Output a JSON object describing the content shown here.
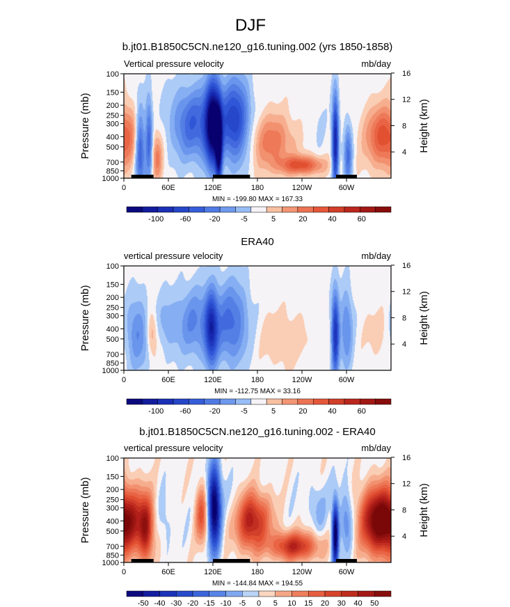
{
  "figure_title": "DJF",
  "colors": {
    "neg_strong": "#08006e",
    "neg_mid": "#2f56d6",
    "neg_light": "#c8dcf6",
    "pos_light": "#fbe0d0",
    "pos_mid": "#ee6a45",
    "pos_strong": "#7a0a0a",
    "land_bar": "#000000"
  },
  "chart_data": [
    {
      "type": "heatmap",
      "title": "b.jt01.B1850C5CN.ne120_g16.tuning.002 (yrs 1850-1858)",
      "left_string": "Vertical pressure velocity",
      "right_string": "mb/day",
      "ylabel": "Pressure (mb)",
      "y2label": "Height (km)",
      "x_ticks": [
        "0",
        "60E",
        "120E",
        "180",
        "120W",
        "60W"
      ],
      "x_ticks_deg": [
        0,
        60,
        120,
        180,
        240,
        300
      ],
      "xlim_deg": [
        0,
        360
      ],
      "y_ticks": [
        "100",
        "150",
        "200",
        "250",
        "300",
        "400",
        "500",
        "700",
        "850",
        "1000"
      ],
      "y_ticks_mb": [
        100,
        150,
        200,
        250,
        300,
        400,
        500,
        700,
        850,
        1000
      ],
      "ylim_mb": [
        1000,
        100
      ],
      "y_scale": "log",
      "y2_ticks": [
        "16",
        "12",
        "8",
        "4"
      ],
      "y2_ticks_km": [
        16,
        12,
        8,
        4
      ],
      "min_text": "MIN = -199.80",
      "max_text": "MAX = 167.33",
      "colorbar_labels": [
        "-100",
        "-60",
        "-20",
        "-5",
        "5",
        "20",
        "40",
        "60"
      ],
      "colorbar_levels": [
        -100,
        -80,
        -60,
        -40,
        -20,
        -10,
        -5,
        -2,
        2,
        5,
        10,
        20,
        30,
        40,
        50,
        60
      ],
      "land_bars_deg": [
        [
          10,
          40
        ],
        [
          120,
          170
        ],
        [
          286,
          314
        ]
      ],
      "features": [
        {
          "lon": 0,
          "p": 400,
          "w": 24,
          "h": 0.7,
          "v": 30
        },
        {
          "lon": 22,
          "p": 500,
          "w": 5,
          "h": 0.9,
          "v": -60
        },
        {
          "lon": 34,
          "p": 420,
          "w": 3.5,
          "h": 0.9,
          "v": -50
        },
        {
          "lon": 45,
          "p": 650,
          "w": 5,
          "h": 0.5,
          "v": 30
        },
        {
          "lon": 95,
          "p": 300,
          "w": 22,
          "h": 0.8,
          "v": -45
        },
        {
          "lon": 120,
          "p": 300,
          "w": 7,
          "h": 0.9,
          "v": -100
        },
        {
          "lon": 128,
          "p": 500,
          "w": 3,
          "h": 0.8,
          "v": -90
        },
        {
          "lon": 150,
          "p": 280,
          "w": 14,
          "h": 0.9,
          "v": -60
        },
        {
          "lon": 200,
          "p": 450,
          "w": 20,
          "h": 0.6,
          "v": 35
        },
        {
          "lon": 240,
          "p": 750,
          "w": 20,
          "h": 0.2,
          "v": 50
        },
        {
          "lon": 262,
          "p": 300,
          "w": 8,
          "h": 0.6,
          "v": -5
        },
        {
          "lon": 285,
          "p": 450,
          "w": 3,
          "h": 1.0,
          "v": -80
        },
        {
          "lon": 302,
          "p": 600,
          "w": 4,
          "h": 0.7,
          "v": -40
        },
        {
          "lon": 348,
          "p": 400,
          "w": 14,
          "h": 0.6,
          "v": 25
        }
      ]
    },
    {
      "type": "heatmap",
      "title": "ERA40",
      "left_string": "vertical pressure velocity",
      "right_string": "mb/day",
      "ylabel": "Pressure (mb)",
      "y2label": "Height (km)",
      "x_ticks": [
        "0",
        "60E",
        "120E",
        "180",
        "120W",
        "60W"
      ],
      "x_ticks_deg": [
        0,
        60,
        120,
        180,
        240,
        300
      ],
      "xlim_deg": [
        0,
        360
      ],
      "y_ticks": [
        "100",
        "150",
        "200",
        "250",
        "300",
        "400",
        "500",
        "700",
        "850",
        "1000"
      ],
      "y_ticks_mb": [
        100,
        150,
        200,
        250,
        300,
        400,
        500,
        700,
        850,
        1000
      ],
      "ylim_mb": [
        1000,
        100
      ],
      "y_scale": "log",
      "y2_ticks": [
        "16",
        "12",
        "8",
        "4"
      ],
      "y2_ticks_km": [
        16,
        12,
        8,
        4
      ],
      "min_text": "MIN = -112.75",
      "max_text": "MAX = 33.16",
      "colorbar_labels": [
        "-100",
        "-60",
        "-20",
        "-5",
        "5",
        "20",
        "40",
        "60"
      ],
      "colorbar_levels": [
        -100,
        -80,
        -60,
        -40,
        -20,
        -10,
        -5,
        -2,
        2,
        5,
        10,
        20,
        30,
        40,
        50,
        60
      ],
      "land_bars_deg": [],
      "features": [
        {
          "lon": 18,
          "p": 450,
          "w": 12,
          "h": 0.8,
          "v": -30
        },
        {
          "lon": 38,
          "p": 450,
          "w": 5,
          "h": 0.5,
          "v": 25
        },
        {
          "lon": 58,
          "p": 350,
          "w": 10,
          "h": 0.6,
          "v": -15
        },
        {
          "lon": 95,
          "p": 350,
          "w": 18,
          "h": 0.8,
          "v": -30
        },
        {
          "lon": 118,
          "p": 400,
          "w": 6,
          "h": 0.8,
          "v": -60
        },
        {
          "lon": 145,
          "p": 350,
          "w": 16,
          "h": 0.9,
          "v": -40
        },
        {
          "lon": 215,
          "p": 500,
          "w": 22,
          "h": 0.6,
          "v": 12
        },
        {
          "lon": 285,
          "p": 450,
          "w": 3.5,
          "h": 0.9,
          "v": -70
        },
        {
          "lon": 300,
          "p": 400,
          "w": 6,
          "h": 0.9,
          "v": -30
        },
        {
          "lon": 345,
          "p": 450,
          "w": 15,
          "h": 0.6,
          "v": 8
        }
      ]
    },
    {
      "type": "heatmap",
      "title": "b.jt01.B1850C5CN.ne120_g16.tuning.002 - ERA40",
      "left_string": "vertical pressure velocity",
      "right_string": "mb/day",
      "ylabel": "Pressure (mb)",
      "y2label": "Height (km)",
      "x_ticks": [
        "0",
        "60E",
        "120E",
        "180",
        "120W",
        "60W"
      ],
      "x_ticks_deg": [
        0,
        60,
        120,
        180,
        240,
        300
      ],
      "xlim_deg": [
        0,
        360
      ],
      "y_ticks": [
        "100",
        "150",
        "200",
        "250",
        "300",
        "400",
        "500",
        "700",
        "850",
        "1000"
      ],
      "y_ticks_mb": [
        100,
        150,
        200,
        250,
        300,
        400,
        500,
        700,
        850,
        1000
      ],
      "ylim_mb": [
        1000,
        100
      ],
      "y_scale": "log",
      "y2_ticks": [
        "16",
        "12",
        "8",
        "4"
      ],
      "y2_ticks_km": [
        16,
        12,
        8,
        4
      ],
      "min_text": "MIN = -144.84",
      "max_text": "MAX = 194.55",
      "colorbar_labels": [
        "-50",
        "-40",
        "-30",
        "-20",
        "-15",
        "-10",
        "-5",
        "0",
        "5",
        "10",
        "15",
        "20",
        "30",
        "40",
        "50"
      ],
      "colorbar_levels": [
        -50,
        -40,
        -30,
        -20,
        -15,
        -10,
        -5,
        0,
        5,
        10,
        15,
        20,
        30,
        40,
        50
      ],
      "land_bars_deg": [
        [
          10,
          40
        ],
        [
          120,
          170
        ],
        [
          286,
          314
        ]
      ],
      "features": [
        {
          "lon": 5,
          "p": 400,
          "w": 22,
          "h": 0.7,
          "v": 40
        },
        {
          "lon": 30,
          "p": 500,
          "w": 6,
          "h": 0.7,
          "v": 25
        },
        {
          "lon": 52,
          "p": 400,
          "w": 8,
          "h": 0.6,
          "v": -8
        },
        {
          "lon": 105,
          "p": 350,
          "w": 6,
          "h": 0.6,
          "v": 25
        },
        {
          "lon": 122,
          "p": 300,
          "w": 6,
          "h": 0.9,
          "v": -55
        },
        {
          "lon": 150,
          "p": 350,
          "w": 10,
          "h": 0.6,
          "v": -12
        },
        {
          "lon": 170,
          "p": 400,
          "w": 18,
          "h": 0.6,
          "v": 40
        },
        {
          "lon": 230,
          "p": 700,
          "w": 22,
          "h": 0.3,
          "v": 35
        },
        {
          "lon": 262,
          "p": 300,
          "w": 8,
          "h": 0.5,
          "v": -8
        },
        {
          "lon": 285,
          "p": 550,
          "w": 3,
          "h": 0.7,
          "v": -55
        },
        {
          "lon": 300,
          "p": 400,
          "w": 6,
          "h": 0.7,
          "v": -15
        },
        {
          "lon": 340,
          "p": 400,
          "w": 16,
          "h": 0.7,
          "v": 35
        }
      ]
    }
  ]
}
